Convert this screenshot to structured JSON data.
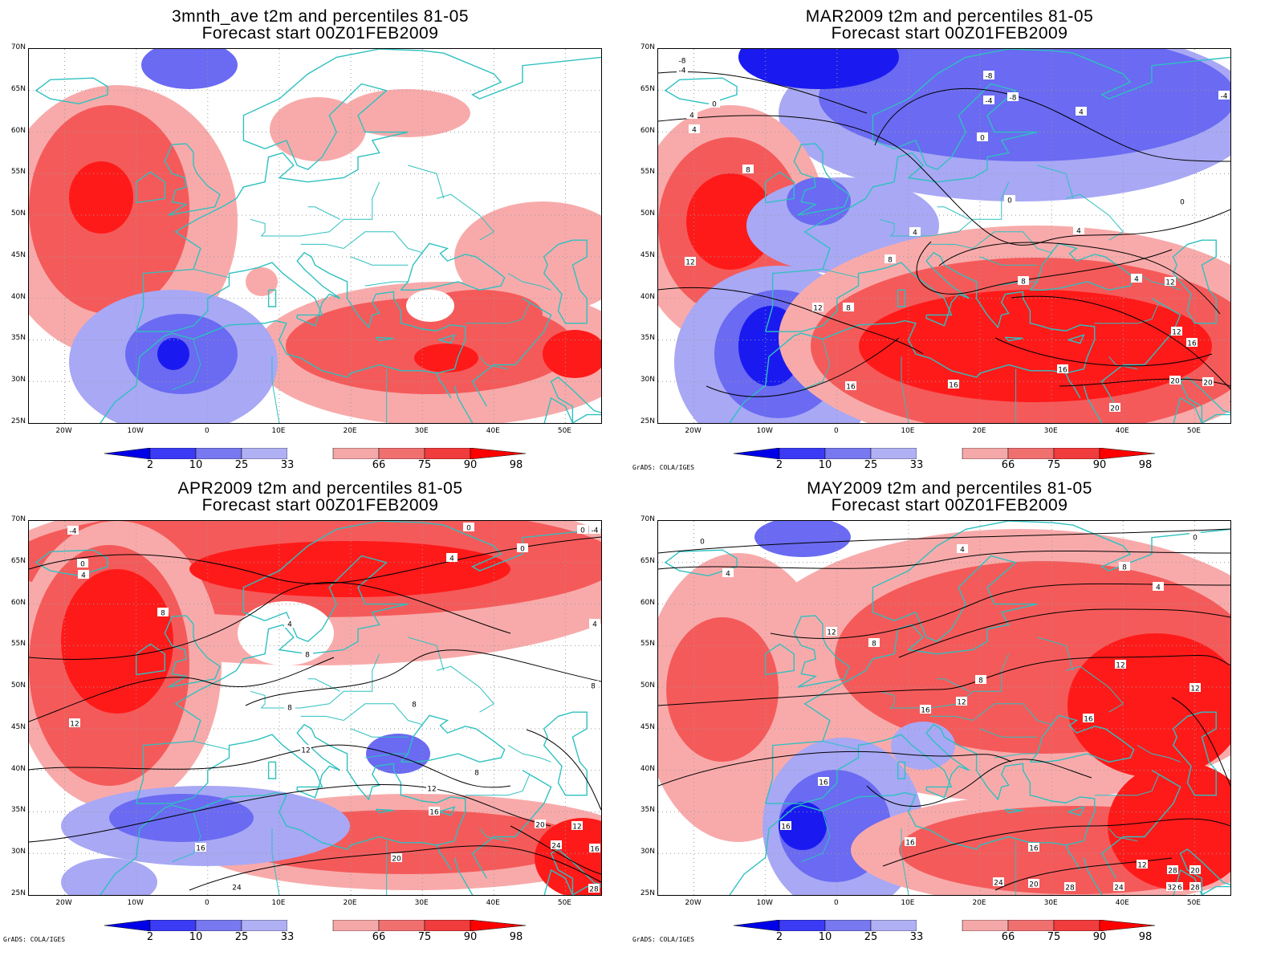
{
  "panels": [
    {
      "title_line1": "3mnth_ave t2m and percentiles 81-05",
      "title_line2": "Forecast start 00Z01FEB2009",
      "credit": "",
      "contour_labels": []
    },
    {
      "title_line1": "MAR2009 t2m and percentiles 81-05",
      "title_line2": "Forecast start 00Z01FEB2009",
      "credit": "GrADS: COLA/IGES",
      "contour_labels": [
        "-8",
        "-4",
        "0",
        "4",
        "4",
        "-8",
        "-8",
        "-4",
        "0",
        "4",
        "8",
        "12",
        "4",
        "0",
        "-4",
        "0",
        "4",
        "4",
        "8",
        "12",
        "8",
        "12",
        "16",
        "16",
        "16",
        "20",
        "20",
        "8",
        "12",
        "16",
        "20"
      ]
    },
    {
      "title_line1": "APR2009 t2m and percentiles 81-05",
      "title_line2": "Forecast start 00Z01FEB2009",
      "credit": "GrADS: COLA/IGES",
      "contour_labels": [
        "-4",
        "0",
        "4",
        "0",
        "0",
        "0",
        "-4",
        "4",
        "8",
        "4",
        "4",
        "8",
        "8",
        "8",
        "12",
        "12",
        "8",
        "12",
        "16",
        "20",
        "16",
        "24",
        "20",
        "24",
        "12",
        "16",
        "28",
        "8"
      ]
    },
    {
      "title_line1": "MAY2009 t2m and percentiles 81-05",
      "title_line2": "Forecast start 00Z01FEB2009",
      "credit": "GrADS: COLA/IGES",
      "contour_labels": [
        "0",
        "4",
        "4",
        "4",
        "8",
        "8",
        "8",
        "12",
        "12",
        "12",
        "16",
        "12",
        "16",
        "16",
        "16",
        "16",
        "16",
        "12",
        "24",
        "16",
        "20",
        "28",
        "24",
        "20",
        "32",
        "28",
        "28",
        "0"
      ]
    }
  ],
  "axes": {
    "lat_labels": [
      "70N",
      "65N",
      "60N",
      "55N",
      "50N",
      "45N",
      "40N",
      "35N",
      "30N",
      "25N"
    ],
    "lon_labels": [
      "20W",
      "10W",
      "0",
      "10E",
      "20E",
      "30E",
      "40E",
      "50E"
    ]
  },
  "colorbar": {
    "labels": [
      "2",
      "10",
      "25",
      "33",
      "66",
      "75",
      "90",
      "98"
    ],
    "colors": [
      "#0000e8",
      "#3b3bf5",
      "#7878f0",
      "#b0b0f5",
      "#ffffff",
      "#f5a8a8",
      "#f07070",
      "#f03c3c",
      "#ff0000"
    ]
  },
  "colors": {
    "coastline": "#2fc0c0",
    "warm_strong": "#ff1a1a",
    "warm_mid": "#f55a5a",
    "warm_light": "#f8aaaa",
    "cold_strong": "#1a1af0",
    "cold_mid": "#6a6af2",
    "cold_light": "#a8a8f5"
  }
}
